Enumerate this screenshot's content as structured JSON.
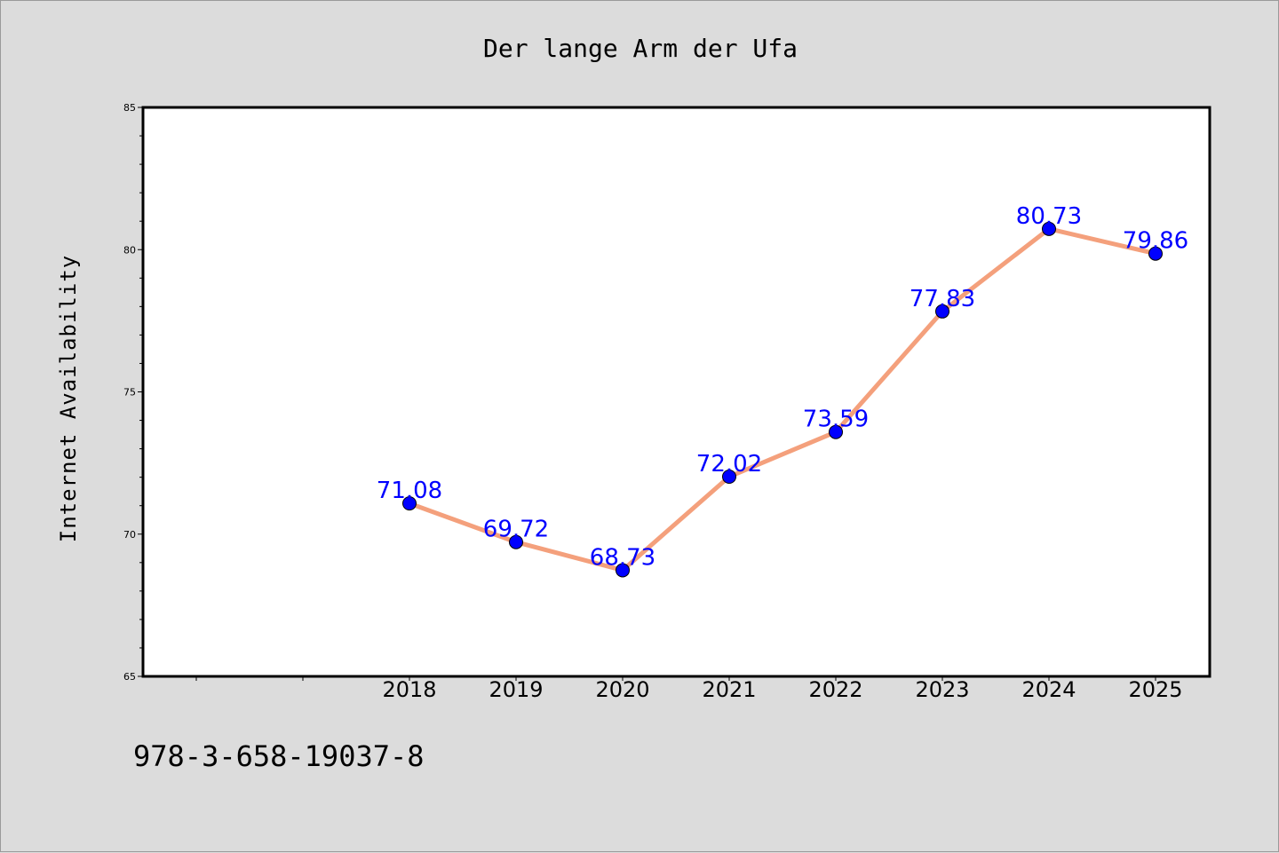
{
  "footer": {
    "code": "978-3-658-19037-8"
  },
  "chart_data": {
    "type": "line",
    "title": "Der lange Arm der Ufa",
    "xlabel": "",
    "ylabel": "Internet Availability",
    "categories": [
      "2018",
      "2019",
      "2020",
      "2021",
      "2022",
      "2023",
      "2024",
      "2025"
    ],
    "series": [
      {
        "values": [
          71.08,
          69.72,
          68.73,
          72.02,
          73.59,
          77.83,
          80.73,
          79.86
        ]
      }
    ],
    "data_labels": [
      "71.08",
      "69.72",
      "68.73",
      "72.02",
      "73.59",
      "77.83",
      "80.73",
      "79.86"
    ],
    "ylim": [
      65,
      85
    ],
    "yticks": [
      "65",
      "70",
      "75",
      "80",
      "85"
    ],
    "grid": false,
    "colors": {
      "line": "#f4a07c",
      "marker": "#0000ff",
      "label": "#0000ff",
      "background": "#dcdcdc",
      "plot_background": "#ffffff"
    }
  }
}
